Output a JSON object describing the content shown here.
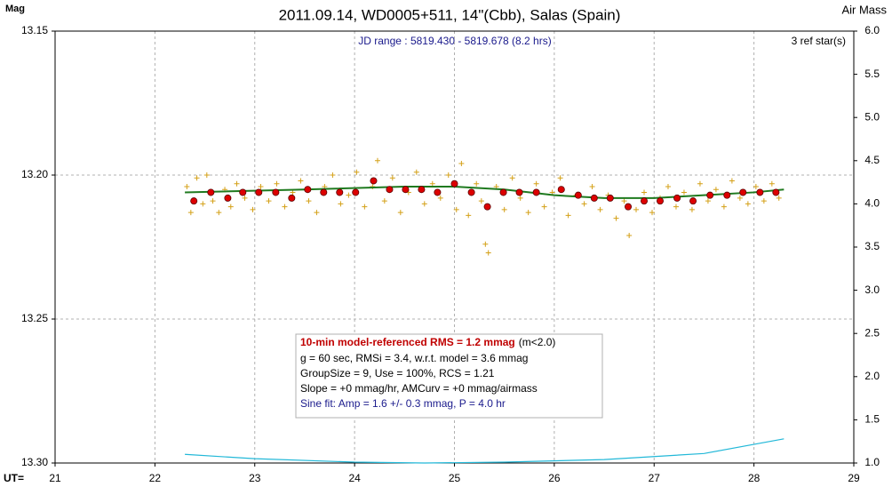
{
  "chart_data": {
    "type": "scatter",
    "title": "2011.09.14, WD0005+511, 14\"(Cbb), Salas (Spain)",
    "y_label": "Mag",
    "y2_label": "Air Mass",
    "x_label": "UT=",
    "subtitle": "JD range : 5819.430 - 5819.678 (8.2 hrs)",
    "annotation": "3 ref star(s)",
    "stats_box": {
      "headline": "10-min model-referenced RMS = 1.2 mmag",
      "headline_note": "(m<2.0)",
      "lines": [
        "g = 60 sec, RMSi = 3.4, w.r.t. model = 3.6 mmag",
        "GroupSize = 9, Use = 100%, RCS = 1.21",
        "Slope = +0 mmag/hr, AMCurv = +0 mmag/airmass"
      ],
      "sine_fit": "Sine fit: Amp = 1.6 +/- 0.3 mmag, P = 4.0 hr"
    },
    "xlim": [
      21,
      29
    ],
    "xticks": [
      21,
      22,
      23,
      24,
      25,
      26,
      27,
      28,
      29
    ],
    "ylim": [
      13.3,
      13.15
    ],
    "yticks": [
      13.15,
      {
        "value": 13.2,
        "label": "13.20"
      },
      13.25,
      {
        "value": 13.3,
        "label": "13.30"
      }
    ],
    "y2lim": [
      1,
      6
    ],
    "y2ticks": [
      {
        "value": 1,
        "label": "1.0"
      },
      1.5,
      {
        "value": 2,
        "label": "2.0"
      },
      2.5,
      {
        "value": 3,
        "label": "3.0"
      },
      3.5,
      {
        "value": 4,
        "label": "4.0"
      },
      4.5,
      {
        "value": 5,
        "label": "5.0"
      },
      5.5,
      {
        "value": 6,
        "label": "6.0"
      }
    ],
    "grid": true,
    "series": [
      {
        "marker": "plus",
        "color": "#d4a017",
        "x": [
          22.32,
          22.36,
          22.42,
          22.48,
          22.52,
          22.58,
          22.64,
          22.7,
          22.76,
          22.82,
          22.9,
          22.98,
          23.06,
          23.14,
          23.22,
          23.3,
          23.38,
          23.46,
          23.54,
          23.62,
          23.7,
          23.78,
          23.86,
          23.94,
          24.02,
          24.1,
          24.18,
          24.23,
          24.3,
          24.38,
          24.46,
          24.54,
          24.62,
          24.7,
          24.78,
          24.86,
          24.94,
          25.02,
          25.07,
          25.14,
          25.22,
          25.27,
          25.31,
          25.34,
          25.42,
          25.5,
          25.58,
          25.66,
          25.74,
          25.82,
          25.9,
          25.98,
          26.06,
          26.14,
          26.22,
          26.3,
          26.38,
          26.46,
          26.54,
          26.62,
          26.7,
          26.75,
          26.82,
          26.9,
          26.98,
          27.06,
          27.14,
          27.22,
          27.3,
          27.38,
          27.46,
          27.54,
          27.62,
          27.7,
          27.78,
          27.86,
          27.94,
          28.02,
          28.1,
          28.18,
          28.25
        ],
        "values": [
          13.204,
          13.213,
          13.201,
          13.21,
          13.2,
          13.209,
          13.213,
          13.205,
          13.211,
          13.203,
          13.208,
          13.212,
          13.204,
          13.209,
          13.203,
          13.211,
          13.206,
          13.202,
          13.209,
          13.213,
          13.204,
          13.2,
          13.21,
          13.207,
          13.199,
          13.211,
          13.204,
          13.195,
          13.209,
          13.201,
          13.213,
          13.206,
          13.199,
          13.21,
          13.203,
          13.208,
          13.2,
          13.212,
          13.196,
          13.214,
          13.203,
          13.209,
          13.224,
          13.227,
          13.204,
          13.212,
          13.201,
          13.208,
          13.213,
          13.203,
          13.211,
          13.206,
          13.201,
          13.214,
          13.207,
          13.21,
          13.204,
          13.212,
          13.207,
          13.215,
          13.209,
          13.221,
          13.212,
          13.206,
          13.213,
          13.208,
          13.204,
          13.211,
          13.206,
          13.212,
          13.203,
          13.209,
          13.205,
          13.211,
          13.202,
          13.208,
          13.21,
          13.204,
          13.209,
          13.203,
          13.208
        ]
      },
      {
        "marker": "line",
        "color": "#1f7a1f",
        "x": [
          22.3,
          23.5,
          24.5,
          25.0,
          25.5,
          26.0,
          26.5,
          27.0,
          27.5,
          28.0,
          28.3
        ],
        "values": [
          13.206,
          13.205,
          13.204,
          13.204,
          13.205,
          13.207,
          13.208,
          13.208,
          13.207,
          13.206,
          13.205
        ]
      },
      {
        "marker": "dot",
        "color": "#dd0000",
        "x": [
          22.39,
          22.56,
          22.73,
          22.88,
          23.04,
          23.21,
          23.37,
          23.53,
          23.69,
          23.85,
          24.01,
          24.19,
          24.35,
          24.51,
          24.67,
          24.83,
          25.0,
          25.17,
          25.33,
          25.49,
          25.65,
          25.82,
          26.07,
          26.24,
          26.4,
          26.56,
          26.74,
          26.9,
          27.06,
          27.23,
          27.39,
          27.56,
          27.73,
          27.89,
          28.06,
          28.22
        ],
        "values": [
          13.209,
          13.206,
          13.208,
          13.206,
          13.206,
          13.206,
          13.208,
          13.205,
          13.206,
          13.206,
          13.206,
          13.202,
          13.205,
          13.205,
          13.205,
          13.206,
          13.203,
          13.206,
          13.211,
          13.206,
          13.206,
          13.206,
          13.205,
          13.207,
          13.208,
          13.208,
          13.211,
          13.209,
          13.209,
          13.208,
          13.209,
          13.207,
          13.207,
          13.206,
          13.206,
          13.206
        ]
      },
      {
        "marker": "line",
        "color": "#22b8d8",
        "axis": "y2",
        "x": [
          22.3,
          23.0,
          24.0,
          24.7,
          25.5,
          26.5,
          27.5,
          28.3
        ],
        "values": [
          1.1,
          1.05,
          1.01,
          1.0,
          1.01,
          1.04,
          1.11,
          1.28
        ]
      }
    ]
  }
}
